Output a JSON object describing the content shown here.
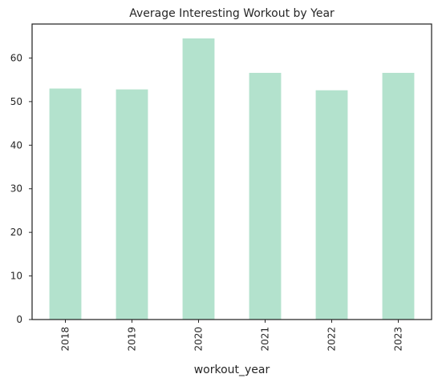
{
  "chart_data": {
    "type": "bar",
    "title": "Average Interesting Workout by Year",
    "xlabel": "workout_year",
    "ylabel": "",
    "categories": [
      "2018",
      "2019",
      "2020",
      "2021",
      "2022",
      "2023"
    ],
    "values": [
      53.0,
      52.8,
      64.5,
      56.6,
      52.6,
      56.6
    ],
    "ylim": [
      0,
      67.8
    ],
    "yticks": [
      0,
      10,
      20,
      30,
      40,
      50,
      60
    ],
    "bar_color": "#b3e2cd",
    "grid": false,
    "legend": "none"
  }
}
